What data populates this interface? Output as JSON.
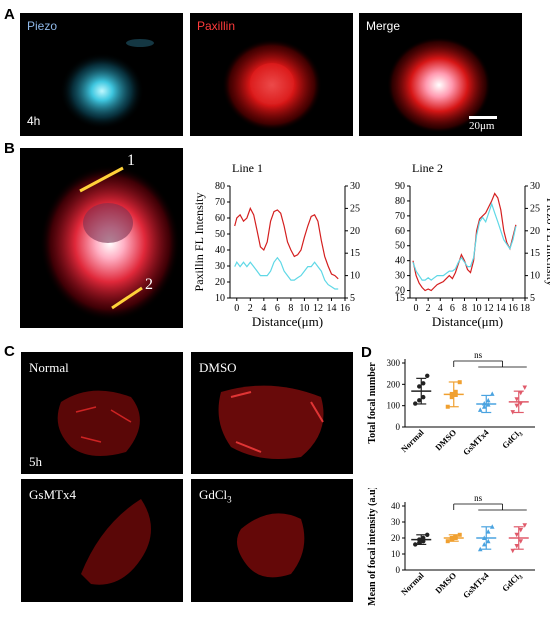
{
  "panels": {
    "A": {
      "letter": "A",
      "images": [
        {
          "label": "Piezo",
          "label_color": "#8fb8e8"
        },
        {
          "label": "Paxillin",
          "label_color": "#ff3b3b"
        },
        {
          "label": "Merge",
          "label_color": "#ffffff"
        }
      ],
      "time_label": "4h",
      "scale_bar_label": "20μm"
    },
    "B": {
      "letter": "B",
      "line_markers": [
        "1",
        "2"
      ]
    },
    "C": {
      "letter": "C",
      "images": [
        {
          "label": "Normal"
        },
        {
          "label": "DMSO"
        },
        {
          "label": "GsMTx4"
        },
        {
          "label": "GdCl",
          "sub": "3"
        }
      ],
      "time_label": "5h"
    },
    "D": {
      "letter": "D"
    }
  },
  "chart_data": [
    {
      "type": "line",
      "title": "Line 1",
      "xlabel": "Distance(μm)",
      "ylabel_left": "Paxillin FL Intensity",
      "xlim": [
        -1,
        16
      ],
      "xticks": [
        0,
        2,
        4,
        6,
        8,
        10,
        12,
        14,
        16
      ],
      "ylim_left": [
        10,
        80
      ],
      "yticks_left": [
        10,
        20,
        30,
        40,
        50,
        60,
        70,
        80
      ],
      "ylim_right": [
        5,
        30
      ],
      "yticks_right": [
        5,
        10,
        15,
        20,
        25,
        30
      ],
      "colors": {
        "paxillin": "#d41f1f",
        "piezo": "#5fd8e6"
      },
      "series": [
        {
          "axis": "left",
          "color_key": "paxillin",
          "x": [
            -0.3,
            0,
            0.5,
            1,
            1.5,
            2,
            2.5,
            3,
            3.5,
            4,
            4.5,
            5,
            5.5,
            6,
            6.5,
            7,
            7.5,
            8,
            8.5,
            9,
            9.5,
            10,
            10.5,
            11,
            11.5,
            12,
            12.5,
            13,
            13.5,
            14,
            14.5,
            15
          ],
          "y": [
            55,
            60,
            62,
            58,
            60,
            66,
            62,
            52,
            42,
            40,
            45,
            58,
            64,
            65,
            63,
            55,
            45,
            40,
            36,
            37,
            40,
            48,
            55,
            61,
            62,
            58,
            46,
            36,
            30,
            25,
            24,
            22
          ]
        },
        {
          "axis": "right",
          "color_key": "piezo",
          "x": [
            -0.3,
            0,
            0.5,
            1,
            1.5,
            2,
            2.5,
            3,
            3.5,
            4,
            4.5,
            5,
            5.5,
            6,
            6.5,
            7,
            7.5,
            8,
            8.5,
            9,
            9.5,
            10,
            10.5,
            11,
            11.5,
            12,
            12.5,
            13,
            13.5,
            14,
            14.5,
            15
          ],
          "y": [
            12,
            13,
            12,
            13,
            12,
            13,
            12,
            11,
            10,
            10,
            10,
            11,
            13,
            14,
            13,
            11,
            10,
            9,
            9,
            9.5,
            10,
            11,
            12,
            12,
            13,
            12,
            11,
            9,
            8,
            7.5,
            7,
            7
          ]
        }
      ]
    },
    {
      "type": "line",
      "title": "Line 2",
      "xlabel": "Distance(μm)",
      "ylabel_right": "Piezo FL Intensity",
      "xlim": [
        -1,
        18
      ],
      "xticks": [
        0,
        2,
        4,
        6,
        8,
        10,
        12,
        14,
        16,
        18
      ],
      "ylim_left": [
        15,
        90
      ],
      "yticks_left": [
        15,
        20,
        30,
        40,
        50,
        60,
        70,
        80,
        90
      ],
      "ylim_right": [
        5,
        30
      ],
      "yticks_right": [
        5,
        10,
        15,
        20,
        25,
        30
      ],
      "colors": {
        "paxillin": "#d41f1f",
        "piezo": "#5fd8e6"
      },
      "series": [
        {
          "axis": "left",
          "color_key": "paxillin",
          "x": [
            -0.5,
            0,
            0.5,
            1,
            1.5,
            2,
            2.5,
            3,
            3.5,
            4,
            4.5,
            5,
            5.5,
            6,
            6.5,
            7,
            7.5,
            8,
            8.5,
            9,
            9.5,
            10,
            10.5,
            11,
            11.5,
            12,
            12.5,
            13,
            13.5,
            14,
            14.5,
            15,
            15.5,
            16,
            16.5
          ],
          "y": [
            40,
            30,
            25,
            22,
            20,
            21,
            20,
            22,
            24,
            25,
            26,
            28,
            30,
            28,
            32,
            38,
            44,
            40,
            34,
            32,
            40,
            60,
            68,
            70,
            72,
            76,
            80,
            85,
            82,
            74,
            60,
            52,
            48,
            56,
            64
          ]
        },
        {
          "axis": "right",
          "color_key": "piezo",
          "x": [
            -0.5,
            0,
            0.5,
            1,
            1.5,
            2,
            2.5,
            3,
            3.5,
            4,
            4.5,
            5,
            5.5,
            6,
            6.5,
            7,
            7.5,
            8,
            8.5,
            9,
            9.5,
            10,
            10.5,
            11,
            11.5,
            12,
            12.5,
            13,
            13.5,
            14,
            14.5,
            15,
            15.5,
            16,
            16.5
          ],
          "y": [
            13,
            11,
            10,
            9,
            9,
            9.5,
            9,
            9.5,
            10,
            10,
            10,
            10.5,
            11,
            11,
            11.5,
            13,
            14,
            13,
            12,
            12,
            14,
            19,
            22,
            23,
            22,
            24,
            26,
            24,
            22,
            20,
            18,
            17,
            16,
            18,
            21
          ]
        }
      ]
    },
    {
      "type": "scatter",
      "ylabel": "Total focal number",
      "categories": [
        "Normal",
        "DMSO",
        "GsMTx4",
        "GdCl3"
      ],
      "ylim": [
        0,
        300
      ],
      "yticks": [
        0,
        100,
        200,
        300
      ],
      "colors": [
        "#222222",
        "#f0a030",
        "#4aa3e0",
        "#e05a6a"
      ],
      "means": [
        168,
        153,
        108,
        118
      ],
      "sd": [
        60,
        58,
        40,
        50
      ],
      "points": [
        [
          110,
          125,
          140,
          190,
          205,
          240
        ],
        [
          95,
          140,
          150,
          155,
          165,
          210
        ],
        [
          80,
          95,
          105,
          110,
          125,
          155
        ],
        [
          70,
          100,
          110,
          130,
          160,
          185
        ]
      ],
      "significance": "ns"
    },
    {
      "type": "scatter",
      "ylabel": "Mean of focal intensity (a.u)",
      "categories": [
        "Normal",
        "DMSO",
        "GsMTx4",
        "GdCl3"
      ],
      "ylim": [
        0,
        40
      ],
      "yticks": [
        0,
        10,
        20,
        30,
        40
      ],
      "colors": [
        "#222222",
        "#f0a030",
        "#4aa3e0",
        "#e05a6a"
      ],
      "means": [
        19,
        20,
        20,
        20
      ],
      "sd": [
        3,
        2,
        7,
        7
      ],
      "points": [
        [
          16,
          17,
          18,
          19,
          20,
          22
        ],
        [
          18,
          19,
          20,
          20,
          21,
          22
        ],
        [
          13,
          16,
          18,
          20,
          24,
          27
        ],
        [
          12,
          15,
          18,
          22,
          25,
          28
        ]
      ],
      "significance": "ns"
    }
  ]
}
